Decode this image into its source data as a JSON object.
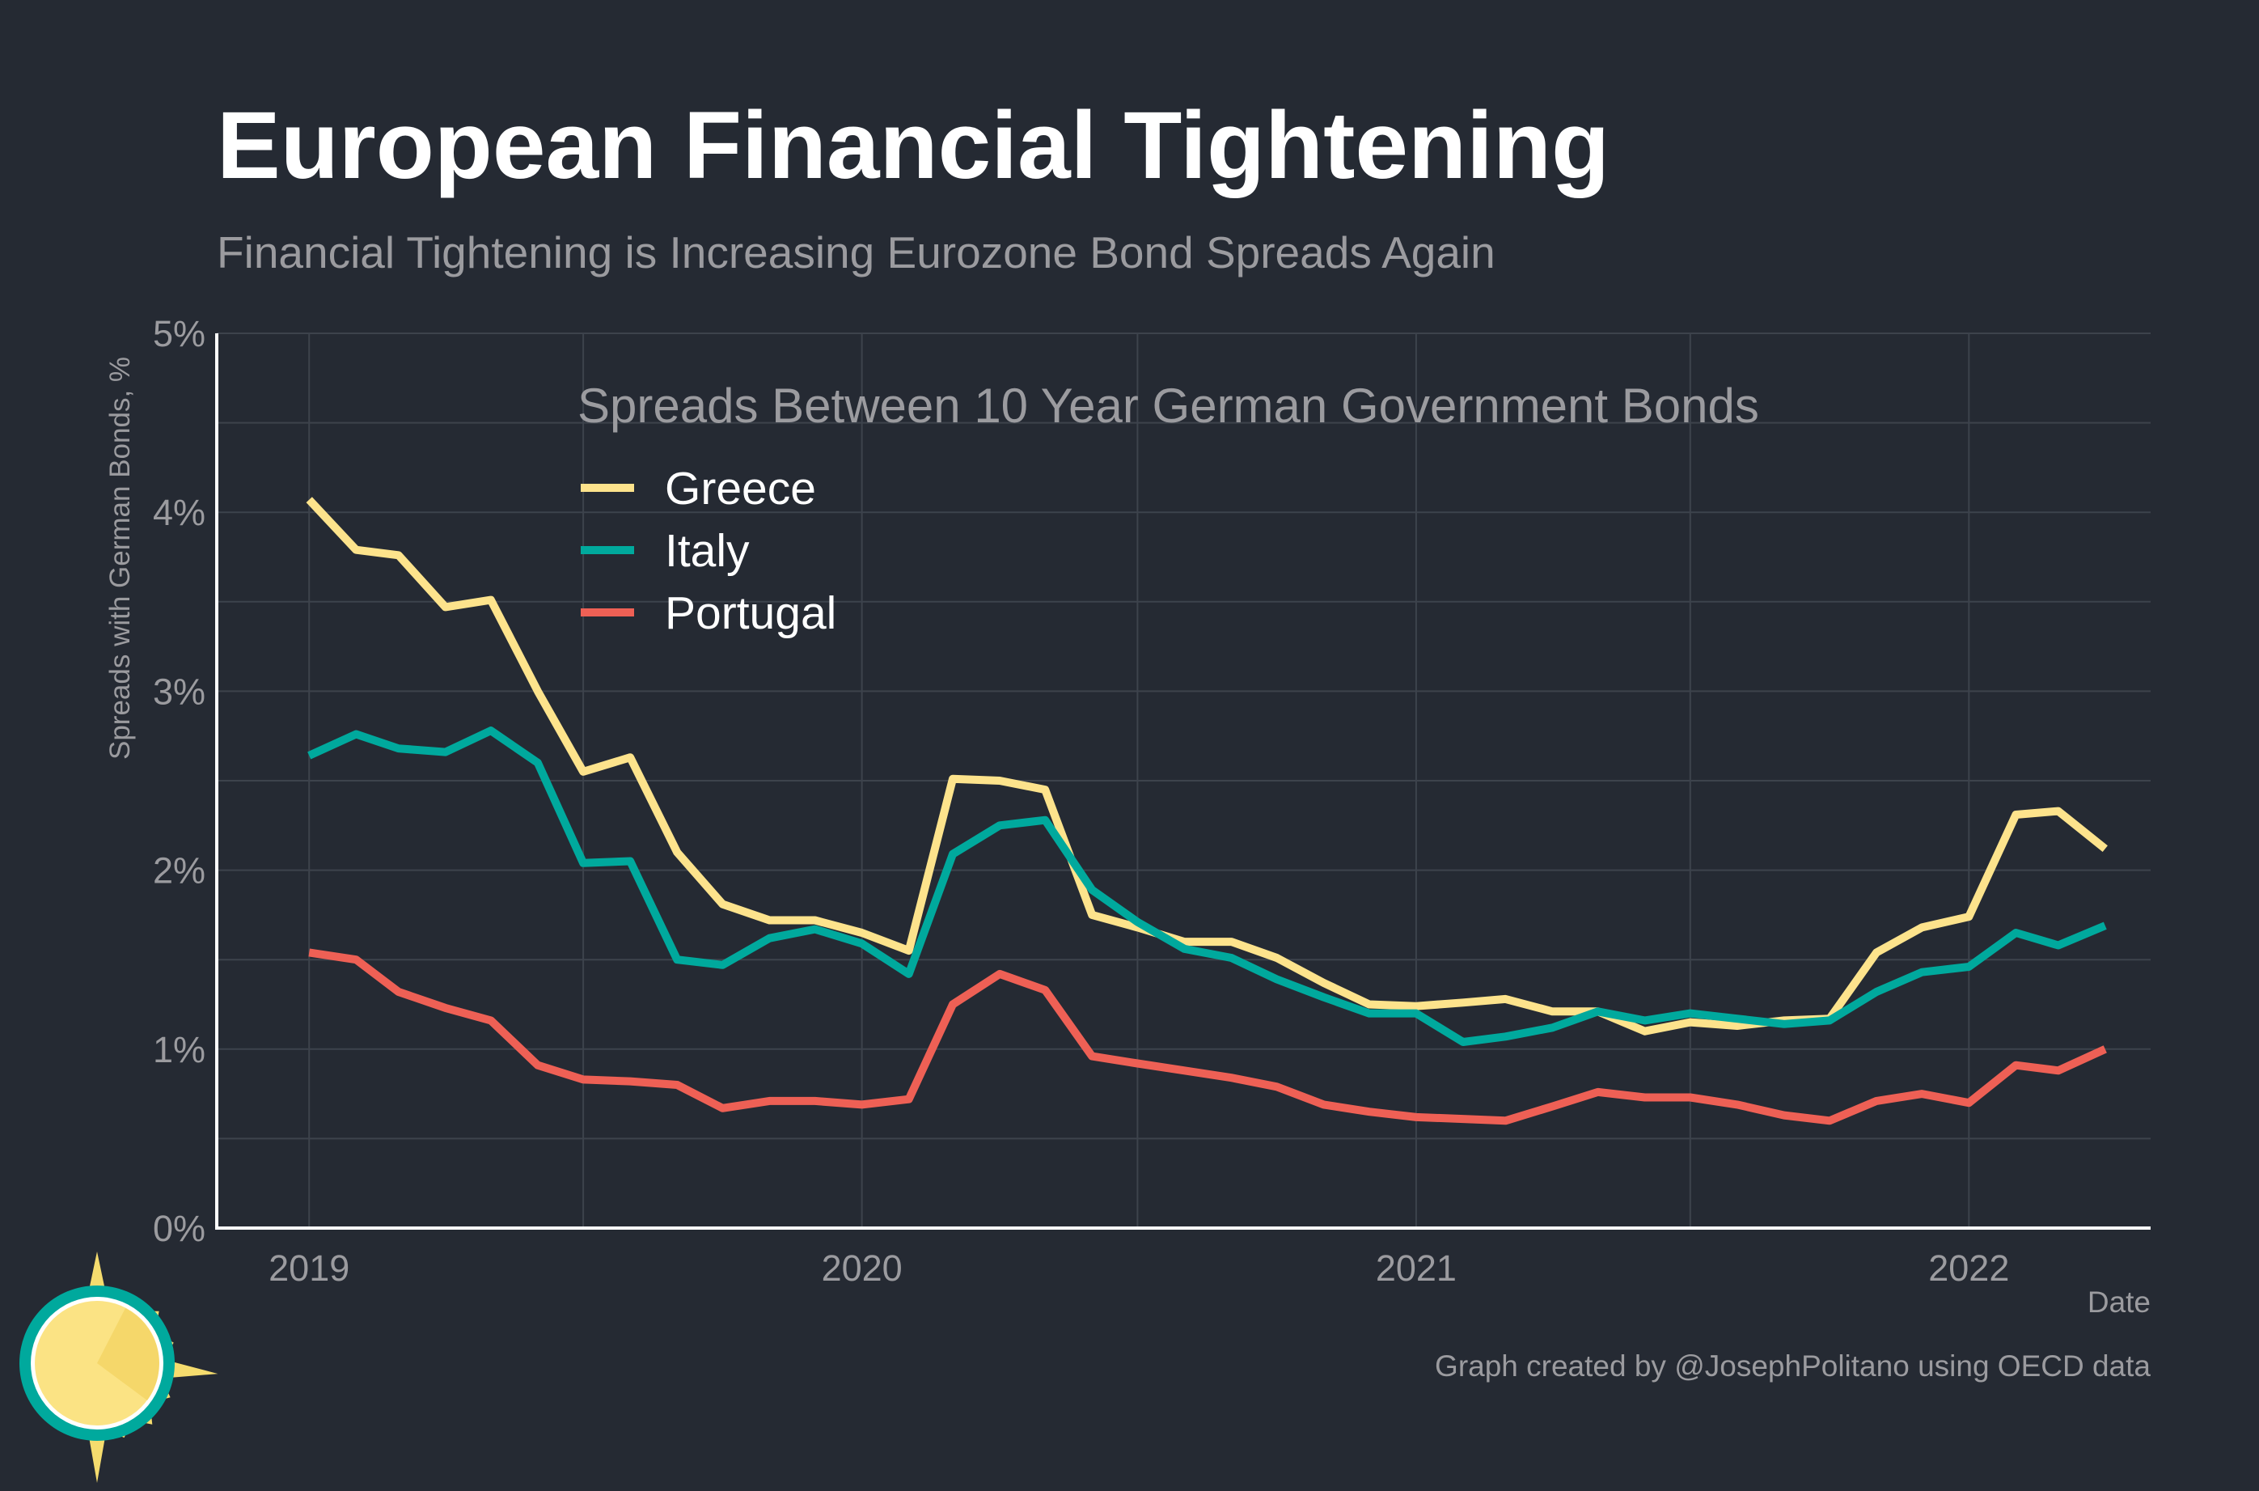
{
  "title": "European Financial Tightening",
  "subtitle": "Financial Tightening is Increasing Eurozone Bond Spreads Again",
  "caption": "Graph created by @JosephPolitano using OECD data",
  "colors": {
    "background": "#252a33",
    "grid": "#3d434c",
    "axis": "#ffffff",
    "muted_text": "#9b9b9f",
    "greece": "#fde38c",
    "italy": "#00a99d",
    "portugal": "#ee6055",
    "logo_sun": "#f5dc6e",
    "logo_ring": "#00a99d"
  },
  "logo": {
    "icon": "sun-logo-icon"
  },
  "chart_data": {
    "type": "line",
    "legend_title": "Spreads Between 10 Year German Government Bonds",
    "legend_position": "top-center",
    "grid": true,
    "xlabel": "Date",
    "ylabel": "Spreads with German Bonds, %",
    "ylim": [
      0,
      5
    ],
    "xlim": [
      "2018-11-01",
      "2022-05-01"
    ],
    "yticks": [
      0,
      1,
      2,
      3,
      4,
      5
    ],
    "yticklabels": [
      "0%",
      "1%",
      "2%",
      "3%",
      "4%",
      "5%"
    ],
    "xticks": [
      "2019-01-01",
      "2020-01-01",
      "2021-01-01",
      "2022-01-01"
    ],
    "xticklabels": [
      "2019",
      "2020",
      "2021",
      "2022"
    ],
    "x": [
      "2019-01-01",
      "2019-02-01",
      "2019-03-01",
      "2019-04-01",
      "2019-05-01",
      "2019-06-01",
      "2019-07-01",
      "2019-08-01",
      "2019-09-01",
      "2019-10-01",
      "2019-11-01",
      "2019-12-01",
      "2020-01-01",
      "2020-02-01",
      "2020-03-01",
      "2020-04-01",
      "2020-05-01",
      "2020-06-01",
      "2020-07-01",
      "2020-08-01",
      "2020-09-01",
      "2020-10-01",
      "2020-11-01",
      "2020-12-01",
      "2021-01-01",
      "2021-02-01",
      "2021-03-01",
      "2021-04-01",
      "2021-05-01",
      "2021-06-01",
      "2021-07-01",
      "2021-08-01",
      "2021-09-01",
      "2021-10-01",
      "2021-11-01",
      "2021-12-01",
      "2022-01-01",
      "2022-02-01",
      "2022-03-01",
      "2022-04-01"
    ],
    "series": [
      {
        "name": "Greece",
        "color": "#fde38c",
        "values": [
          4.07,
          3.79,
          3.76,
          3.47,
          3.51,
          3.0,
          2.55,
          2.63,
          2.1,
          1.81,
          1.72,
          1.72,
          1.65,
          1.55,
          2.51,
          2.5,
          2.45,
          1.75,
          1.68,
          1.6,
          1.6,
          1.51,
          1.37,
          1.25,
          1.24,
          1.26,
          1.28,
          1.21,
          1.21,
          1.1,
          1.15,
          1.13,
          1.16,
          1.17,
          1.54,
          1.68,
          1.74,
          2.31,
          2.33,
          2.12
        ]
      },
      {
        "name": "Italy",
        "color": "#00a99d",
        "values": [
          2.64,
          2.76,
          2.68,
          2.66,
          2.78,
          2.6,
          2.04,
          2.05,
          1.5,
          1.47,
          1.62,
          1.67,
          1.59,
          1.42,
          2.09,
          2.25,
          2.28,
          1.89,
          1.71,
          1.56,
          1.51,
          1.39,
          1.29,
          1.2,
          1.2,
          1.04,
          1.07,
          1.12,
          1.21,
          1.16,
          1.2,
          1.17,
          1.14,
          1.16,
          1.32,
          1.43,
          1.46,
          1.65,
          1.58,
          1.69
        ]
      },
      {
        "name": "Portugal",
        "color": "#ee6055",
        "values": [
          1.54,
          1.5,
          1.32,
          1.23,
          1.16,
          0.91,
          0.83,
          0.82,
          0.8,
          0.67,
          0.71,
          0.71,
          0.69,
          0.72,
          1.25,
          1.42,
          1.33,
          0.96,
          0.92,
          0.88,
          0.84,
          0.79,
          0.69,
          0.65,
          0.62,
          0.61,
          0.6,
          0.68,
          0.76,
          0.73,
          0.73,
          0.69,
          0.63,
          0.6,
          0.71,
          0.75,
          0.7,
          0.91,
          0.88,
          1.0
        ]
      }
    ]
  }
}
